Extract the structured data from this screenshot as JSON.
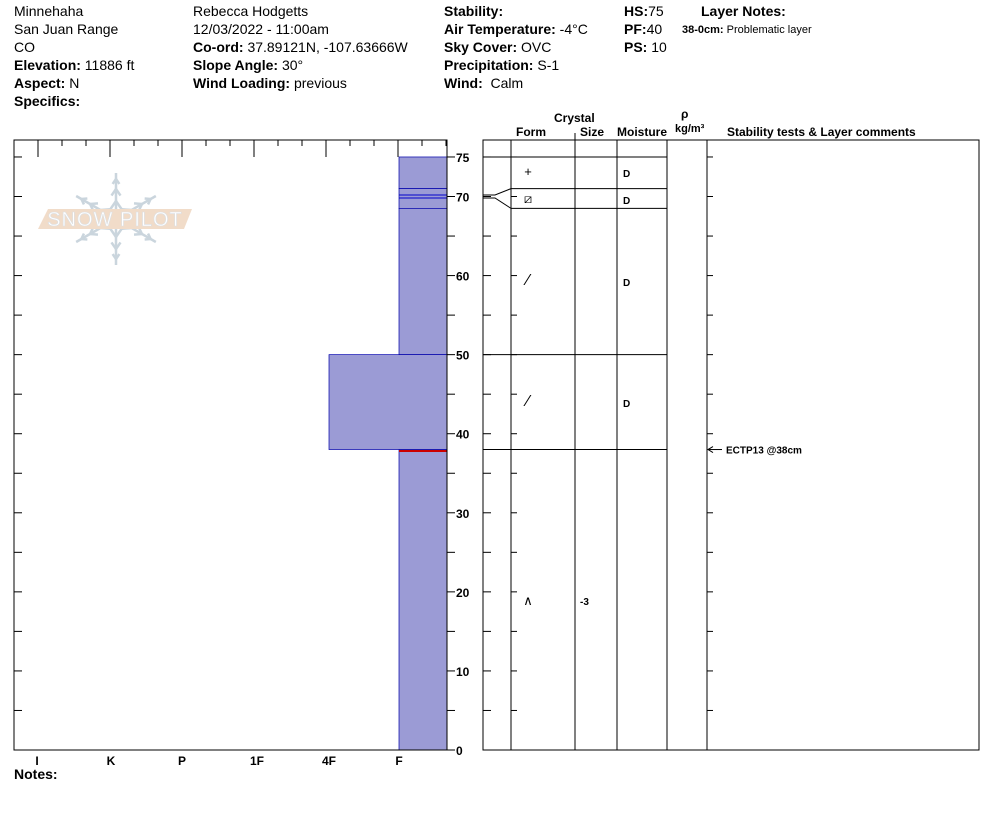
{
  "header": {
    "location": "Minnehaha",
    "range": "San Juan Range",
    "state": "CO",
    "elevation_label": "Elevation:",
    "elevation": "11886 ft",
    "aspect_label": "Aspect:",
    "aspect": "N",
    "specifics_label": "Specifics:",
    "observer": "Rebecca Hodgetts",
    "datetime": "12/03/2022 - 11:00am",
    "coord_label": "Co-ord:",
    "coord": "37.89121N, -107.63666W",
    "slope_label": "Slope Angle:",
    "slope": "30°",
    "wind_loading_label": "Wind Loading:",
    "wind_loading": "previous",
    "stability_label": "Stability:",
    "air_temp_label": "Air Temperature:",
    "air_temp": "-4°C",
    "sky_label": "Sky Cover:",
    "sky": "OVC",
    "precip_label": "Precipitation:",
    "precip": "S-1",
    "wind_label": "Wind:",
    "wind": "Calm",
    "hs_label": "HS:",
    "hs": "75",
    "pf_label": "PF:",
    "pf": "40",
    "ps_label": "PS:",
    "ps": "10",
    "layer_notes_label": "Layer Notes:",
    "layer_note_range": "38-0cm:",
    "layer_note_text": "Problematic layer"
  },
  "columns": {
    "crystal": "Crystal",
    "form": "Form",
    "size": "Size",
    "moisture": "Moisture",
    "rho": "ρ",
    "density_unit": "kg/m³",
    "comments": "Stability tests & Layer comments"
  },
  "hardness_axis": [
    "I",
    "K",
    "P",
    "1F",
    "4F",
    "F"
  ],
  "depth_ticks": [
    75,
    70,
    60,
    50,
    40,
    30,
    20,
    10,
    0
  ],
  "layers": [
    {
      "top": 75,
      "bottom": 71,
      "hardness": "F",
      "form": "+",
      "size": "",
      "moisture": "D"
    },
    {
      "top": 71,
      "bottom": 68.5,
      "hardness": "F",
      "form": "⧄",
      "size": "",
      "moisture": "D"
    },
    {
      "top": 68.5,
      "bottom": 50,
      "hardness": "F",
      "form": "⁄",
      "size": "",
      "moisture": "D"
    },
    {
      "top": 50,
      "bottom": 38,
      "hardness": "4F",
      "form": "⁄",
      "size": "",
      "moisture": "D"
    },
    {
      "top": 38,
      "bottom": 0,
      "hardness": "F",
      "form": "∧",
      "size": "-3",
      "moisture": ""
    }
  ],
  "stability_test": {
    "depth": 38,
    "label": "ECTP13 @38cm"
  },
  "markers": {
    "blue_depth": 70,
    "red_depth": 38
  },
  "notes_label": "Notes:",
  "logo_text": "SNOW PILOT",
  "colors": {
    "bar": "#9b9bd5",
    "blue": "#0000cc",
    "red": "#cc0000",
    "logo_band": "#f0d9c4",
    "logo_flake": "#c5d1da"
  }
}
